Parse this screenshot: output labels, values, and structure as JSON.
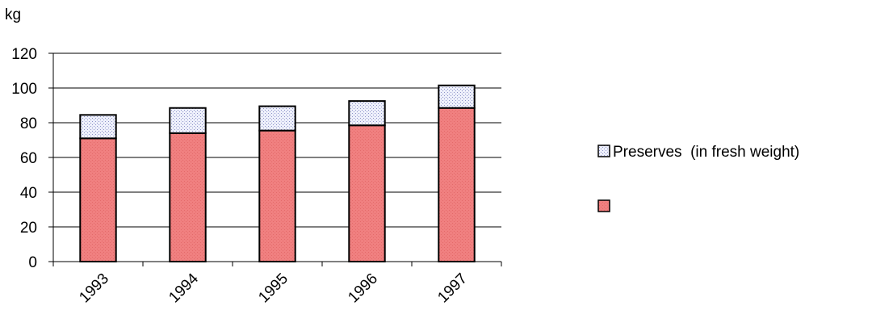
{
  "chart_data": {
    "type": "bar",
    "stacked": true,
    "ylabel": "kg",
    "categories": [
      "1993",
      "1994",
      "1995",
      "1996",
      "1997"
    ],
    "ylim": [
      0,
      120
    ],
    "yticks": [
      "0",
      "20",
      "40",
      "60",
      "80",
      "100",
      "120"
    ],
    "grid": true,
    "legend_position": "right",
    "series": [
      {
        "name": "",
        "values": [
          71,
          74,
          75.5,
          78.5,
          88.5
        ],
        "color": "#f08080"
      },
      {
        "name": "Preserves  (in fresh weight)",
        "values": [
          13.5,
          14.5,
          14,
          14,
          13
        ],
        "color": "#dde0f4"
      }
    ]
  }
}
